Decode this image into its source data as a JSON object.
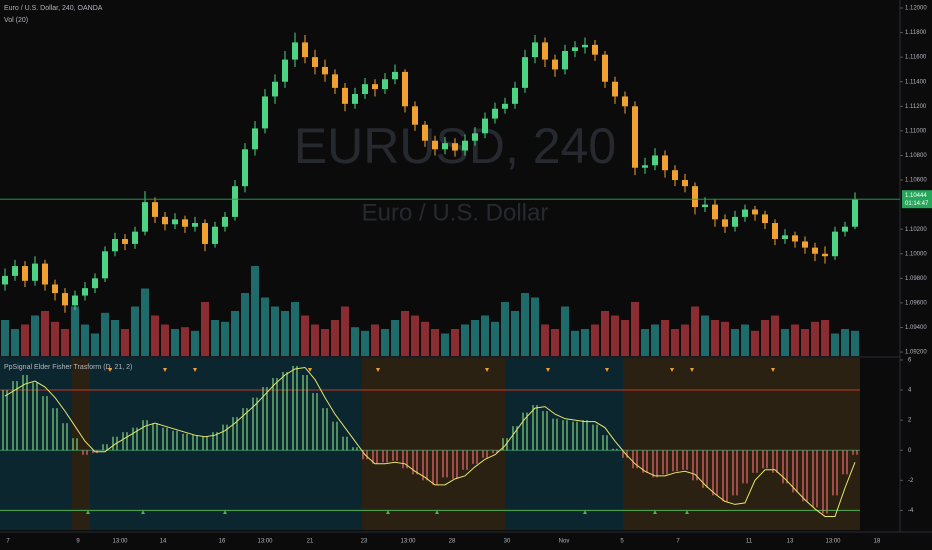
{
  "chart_data": [
    {
      "type": "candlestick",
      "title": "Euro / U.S. Dollar, 240, OANDA",
      "watermark": "EURUSD, 240",
      "watermark_subtitle": "Euro / U.S. Dollar",
      "up_color": "#4cd383",
      "down_color": "#f0a030",
      "open": [
        1.0975,
        1.0982,
        1.099,
        1.0978,
        1.0992,
        1.0975,
        1.0968,
        1.0958,
        1.0966,
        1.0972,
        1.098,
        1.1002,
        1.1012,
        1.1008,
        1.1018,
        1.1042,
        1.103,
        1.1024,
        1.1028,
        1.1022,
        1.1025,
        1.1008,
        1.1022,
        1.103,
        1.1055,
        1.1085,
        1.1102,
        1.1128,
        1.114,
        1.1158,
        1.1172,
        1.116,
        1.1152,
        1.1146,
        1.1135,
        1.1122,
        1.113,
        1.1138,
        1.1134,
        1.1142,
        1.1148,
        1.112,
        1.1105,
        1.1092,
        1.1085,
        1.109,
        1.1084,
        1.1092,
        1.1098,
        1.111,
        1.1118,
        1.1122,
        1.1135,
        1.116,
        1.1172,
        1.1158,
        1.115,
        1.1165,
        1.1168,
        1.117,
        1.1162,
        1.114,
        1.1128,
        1.112,
        1.107,
        1.1072,
        1.108,
        1.1068,
        1.106,
        1.1055,
        1.1038,
        1.104,
        1.1028,
        1.1022,
        1.103,
        1.1036,
        1.1032,
        1.1025,
        1.1012,
        1.1015,
        1.101,
        1.1005,
        1.1,
        1.0998,
        1.1018,
        1.1022
      ],
      "high": [
        1.0988,
        1.0995,
        1.0994,
        1.0998,
        1.0995,
        1.0979,
        1.0972,
        1.097,
        1.0977,
        1.0984,
        1.1006,
        1.1017,
        1.1016,
        1.1022,
        1.1051,
        1.1046,
        1.1034,
        1.1033,
        1.1031,
        1.103,
        1.1028,
        1.1026,
        1.1034,
        1.106,
        1.109,
        1.1108,
        1.1134,
        1.1146,
        1.1165,
        1.118,
        1.1178,
        1.1166,
        1.1158,
        1.115,
        1.1139,
        1.1135,
        1.1143,
        1.1142,
        1.1147,
        1.1154,
        1.115,
        1.1124,
        1.1108,
        1.1096,
        1.1095,
        1.1094,
        1.1097,
        1.1103,
        1.1115,
        1.1123,
        1.1127,
        1.114,
        1.1166,
        1.1178,
        1.1176,
        1.1162,
        1.117,
        1.1173,
        1.1176,
        1.1174,
        1.1165,
        1.1144,
        1.1132,
        1.1124,
        1.1078,
        1.1086,
        1.1084,
        1.1072,
        1.1065,
        1.1058,
        1.1046,
        1.1044,
        1.1032,
        1.1035,
        1.104,
        1.1039,
        1.1035,
        1.1028,
        1.102,
        1.1018,
        1.1014,
        1.1009,
        1.1006,
        1.1022,
        1.1026,
        1.105
      ],
      "low": [
        1.097,
        1.0978,
        1.0973,
        1.0974,
        1.097,
        1.0962,
        1.0952,
        1.0954,
        1.0962,
        1.0968,
        1.0977,
        1.0998,
        1.1003,
        1.1004,
        1.1015,
        1.1025,
        1.1019,
        1.102,
        1.1017,
        1.1018,
        1.1002,
        1.1005,
        1.1018,
        1.1027,
        1.105,
        1.108,
        1.1098,
        1.1122,
        1.1135,
        1.1152,
        1.1155,
        1.1146,
        1.114,
        1.113,
        1.1116,
        1.1118,
        1.1126,
        1.1128,
        1.113,
        1.1138,
        1.1115,
        1.11,
        1.1087,
        1.108,
        1.1081,
        1.1079,
        1.108,
        1.1088,
        1.1094,
        1.1106,
        1.1114,
        1.1118,
        1.1131,
        1.1155,
        1.1152,
        1.1144,
        1.1146,
        1.116,
        1.1163,
        1.1157,
        1.1135,
        1.1122,
        1.1114,
        1.1064,
        1.1065,
        1.1068,
        1.1062,
        1.1055,
        1.105,
        1.1032,
        1.1034,
        1.1022,
        1.1017,
        1.1018,
        1.1026,
        1.1027,
        1.102,
        1.1007,
        1.1008,
        1.1005,
        1.1,
        1.0994,
        1.0992,
        1.0995,
        1.1014,
        1.102
      ],
      "close": [
        1.0982,
        1.099,
        1.0978,
        1.0992,
        1.0975,
        1.0968,
        1.0958,
        1.0966,
        1.0972,
        1.098,
        1.1002,
        1.1012,
        1.1008,
        1.1018,
        1.1042,
        1.103,
        1.1024,
        1.1028,
        1.1022,
        1.1025,
        1.1008,
        1.1022,
        1.103,
        1.1055,
        1.1085,
        1.1102,
        1.1128,
        1.114,
        1.1158,
        1.1172,
        1.116,
        1.1152,
        1.1146,
        1.1135,
        1.1122,
        1.113,
        1.1138,
        1.1134,
        1.1142,
        1.1148,
        1.112,
        1.1105,
        1.1092,
        1.1085,
        1.109,
        1.1084,
        1.1092,
        1.1098,
        1.111,
        1.1118,
        1.1122,
        1.1135,
        1.116,
        1.1172,
        1.1158,
        1.115,
        1.1165,
        1.1168,
        1.117,
        1.1162,
        1.114,
        1.1128,
        1.112,
        1.107,
        1.1072,
        1.108,
        1.1068,
        1.106,
        1.1055,
        1.1038,
        1.104,
        1.1028,
        1.1022,
        1.103,
        1.1036,
        1.1032,
        1.1025,
        1.1012,
        1.1015,
        1.101,
        1.1005,
        1.1,
        1.0998,
        1.1018,
        1.1022,
        1.1044
      ],
      "ylim": [
        1.09168,
        1.12065
      ],
      "yticks": [
        {
          "value": 1.12,
          "label": "1.12000"
        },
        {
          "value": 1.118,
          "label": "1.11800"
        },
        {
          "value": 1.116,
          "label": "1.11600"
        },
        {
          "value": 1.114,
          "label": "1.11400"
        },
        {
          "value": 1.112,
          "label": "1.11200"
        },
        {
          "value": 1.11,
          "label": "1.11000"
        },
        {
          "value": 1.108,
          "label": "1.10800"
        },
        {
          "value": 1.106,
          "label": "1.10600"
        },
        {
          "value": 1.102,
          "label": "1.10200"
        },
        {
          "value": 1.1,
          "label": "1.10000"
        },
        {
          "value": 1.098,
          "label": "1.09800"
        },
        {
          "value": 1.096,
          "label": "1.09600"
        },
        {
          "value": 1.094,
          "label": "1.09400"
        },
        {
          "value": 1.092,
          "label": "1.09200"
        }
      ],
      "last_price": {
        "value": 1.10444,
        "label": "1.10444"
      },
      "countdown": "01:14:47",
      "last_price_color": "#26a65b",
      "volume": {
        "name": "Vol (20)",
        "up_color": "#1f6a6a",
        "down_color": "#8a2d33",
        "values": [
          40,
          30,
          35,
          45,
          50,
          38,
          30,
          55,
          35,
          25,
          48,
          40,
          30,
          55,
          75,
          45,
          35,
          30,
          32,
          28,
          60,
          40,
          38,
          50,
          70,
          100,
          65,
          55,
          50,
          60,
          45,
          35,
          30,
          40,
          55,
          32,
          28,
          35,
          30,
          40,
          50,
          45,
          38,
          30,
          25,
          30,
          35,
          40,
          45,
          38,
          60,
          50,
          70,
          65,
          35,
          30,
          55,
          28,
          30,
          35,
          50,
          45,
          40,
          60,
          30,
          35,
          40,
          30,
          35,
          55,
          45,
          40,
          38,
          30,
          35,
          28,
          40,
          45,
          30,
          35,
          30,
          38,
          40,
          25,
          30,
          28
        ],
        "ylim": [
          0,
          100
        ]
      }
    },
    {
      "type": "oscillator",
      "title": "PpSignal Elder Fisher Trasform  (D, 21, 2)",
      "pos_color": "#7fd47f",
      "neg_color": "#f26b6b",
      "signal_color": "#e6e66a",
      "values": [
        4.0,
        4.6,
        5.0,
        4.5,
        3.6,
        2.8,
        1.8,
        0.8,
        -0.3,
        -0.2,
        0.4,
        0.9,
        1.2,
        1.5,
        2.0,
        1.8,
        1.5,
        1.3,
        1.1,
        1.0,
        0.9,
        1.2,
        1.7,
        2.2,
        2.8,
        3.5,
        4.2,
        4.8,
        5.2,
        5.6,
        5.0,
        3.8,
        2.8,
        1.9,
        0.9,
        0.2,
        -0.6,
        -0.9,
        -0.8,
        -0.7,
        -1.2,
        -1.6,
        -2.0,
        -2.3,
        -1.8,
        -1.9,
        -1.3,
        -0.9,
        -0.5,
        -0.2,
        0.8,
        1.6,
        2.5,
        3.0,
        2.6,
        2.1,
        2.0,
        1.9,
        2.0,
        1.7,
        1.0,
        0.1,
        -0.5,
        -1.2,
        -1.5,
        -1.8,
        -1.6,
        -1.4,
        -1.3,
        -2.0,
        -2.5,
        -3.0,
        -3.4,
        -3.0,
        -2.2,
        -1.5,
        -1.2,
        -1.5,
        -2.2,
        -2.8,
        -3.4,
        -3.8,
        -4.2,
        -3.0,
        -1.6,
        -0.3
      ],
      "signal": [
        3.6,
        4.0,
        4.4,
        4.6,
        4.2,
        3.5,
        2.6,
        1.6,
        0.6,
        -0.1,
        -0.1,
        0.4,
        0.8,
        1.2,
        1.6,
        1.8,
        1.6,
        1.4,
        1.2,
        1.0,
        0.9,
        1.0,
        1.3,
        1.8,
        2.4,
        3.0,
        3.7,
        4.4,
        5.0,
        5.4,
        5.5,
        4.7,
        3.5,
        2.4,
        1.5,
        0.6,
        -0.3,
        -0.9,
        -0.9,
        -0.8,
        -0.9,
        -1.4,
        -1.8,
        -2.3,
        -2.3,
        -1.9,
        -1.7,
        -1.1,
        -0.6,
        -0.3,
        0.3,
        1.2,
        2.1,
        2.8,
        2.9,
        2.4,
        2.1,
        2.0,
        1.9,
        1.9,
        1.5,
        0.6,
        -0.2,
        -0.9,
        -1.4,
        -1.7,
        -1.7,
        -1.5,
        -1.4,
        -1.6,
        -2.3,
        -2.9,
        -3.4,
        -3.6,
        -3.5,
        -2.0,
        -1.3,
        -1.3,
        -1.9,
        -2.6,
        -3.3,
        -3.9,
        -4.4,
        -4.4,
        -2.5,
        -0.8
      ],
      "ylim": [
        -5.3,
        6.13
      ],
      "yticks": [
        6,
        4,
        2,
        0,
        -2,
        -4
      ],
      "level_lines": [
        {
          "value": 4,
          "color": "#c0392b"
        },
        {
          "value": 0,
          "color": "#3b8a5a"
        },
        {
          "value": -4,
          "color": "#4caf50"
        }
      ],
      "x_labels": [
        "7",
        "9",
        "13:00",
        "14",
        "16",
        "13:00",
        "21",
        "23",
        "13:00",
        "28",
        "30",
        "Nov",
        "5",
        "7",
        "11",
        "13",
        "13:00",
        "18"
      ]
    }
  ]
}
